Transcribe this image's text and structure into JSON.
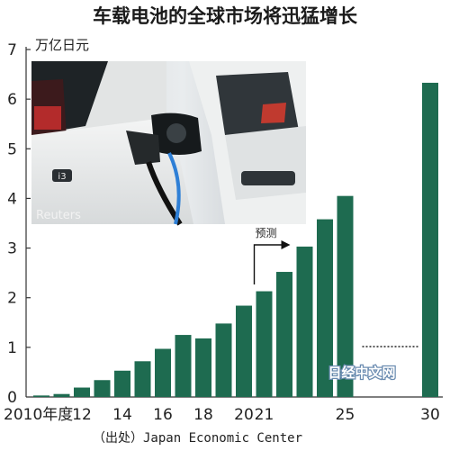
{
  "chart_data": {
    "type": "bar",
    "title": "车载电池的全球市场将迅猛增长",
    "ylabel": "万亿日元",
    "ylim": [
      0,
      7
    ],
    "y_ticks": [
      "0",
      "1",
      "2",
      "3",
      "4",
      "5",
      "6",
      "7"
    ],
    "categories": [
      "2010",
      "2011",
      "2012",
      "2013",
      "2014",
      "2015",
      "2016",
      "2017",
      "2018",
      "2019",
      "2020",
      "2021",
      "2022",
      "2023",
      "2024",
      "2025",
      "2030"
    ],
    "values": [
      0.03,
      0.06,
      0.19,
      0.34,
      0.53,
      0.72,
      0.97,
      1.25,
      1.18,
      1.48,
      1.84,
      2.13,
      2.52,
      3.03,
      3.58,
      4.05,
      6.33
    ],
    "x_tick_labels": [
      {
        "index": 0,
        "label": "2010年度"
      },
      {
        "index": 2,
        "label": "12"
      },
      {
        "index": 4,
        "label": "14"
      },
      {
        "index": 6,
        "label": "16"
      },
      {
        "index": 8,
        "label": "18"
      },
      {
        "index": 10,
        "label": "20"
      },
      {
        "index": 11,
        "label": "21"
      },
      {
        "index": 15,
        "label": "25"
      },
      {
        "index": 16,
        "label": "30"
      }
    ],
    "forecast_label": "预测",
    "forecast_start_index": 11,
    "bar_color": "#1e6b50",
    "grid": false,
    "legend": "none"
  },
  "source": "（出处）Japan Economic Center",
  "photo_credit": "Reuters",
  "watermark": "日经中文网",
  "photo_badge": "i3"
}
